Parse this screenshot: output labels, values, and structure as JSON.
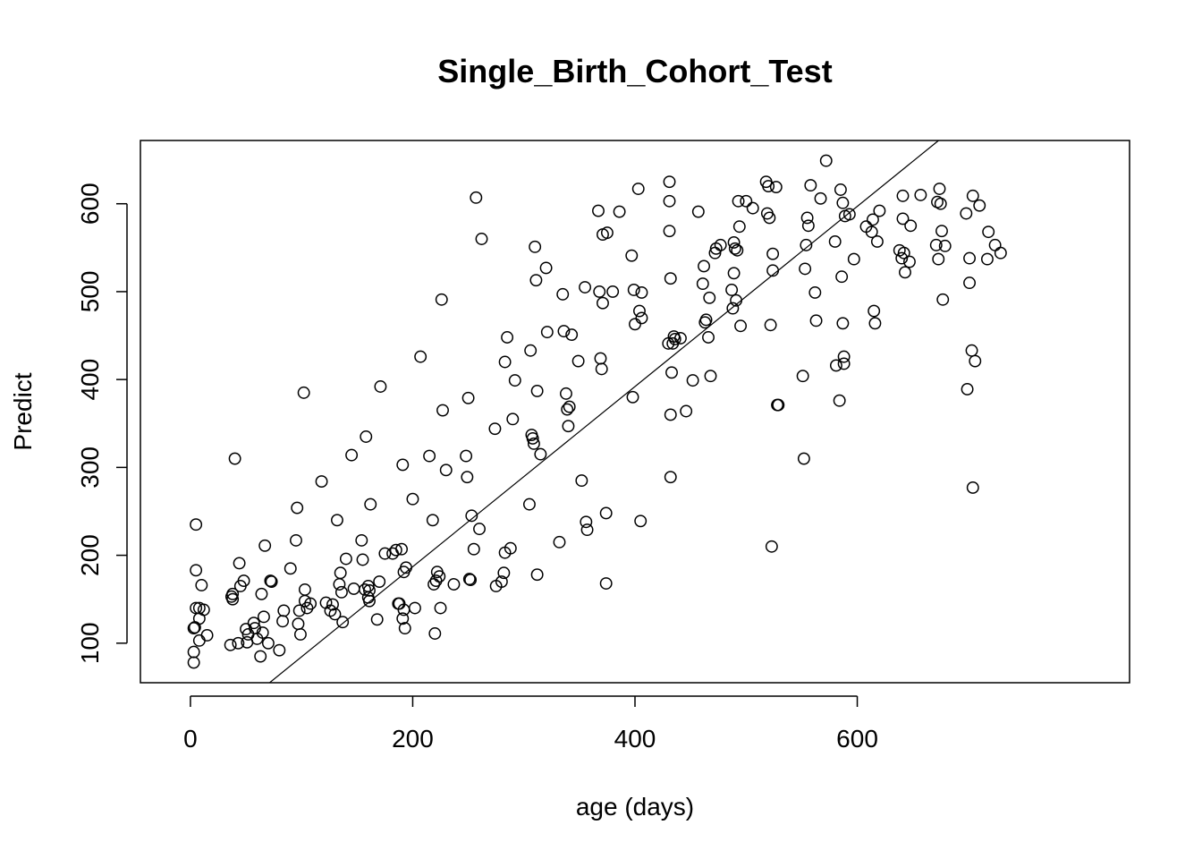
{
  "chart_data": {
    "type": "scatter",
    "title": "Single_Birth_Cohort_Test",
    "xlabel": "age (days)",
    "ylabel": "Predict",
    "xlim": [
      -45,
      845
    ],
    "ylim": [
      55,
      672
    ],
    "x_ticks": [
      0,
      200,
      400,
      600
    ],
    "y_ticks": [
      100,
      200,
      300,
      400,
      500,
      600
    ],
    "x_tick_labels": [
      "0",
      "200",
      "400",
      "600"
    ],
    "y_tick_labels": [
      "100",
      "200",
      "300",
      "400",
      "500",
      "600"
    ],
    "box": true,
    "grid": false,
    "fit_line": {
      "intercept": -18,
      "slope": 1.025
    },
    "points": [
      [
        5,
        235
      ],
      [
        5,
        183
      ],
      [
        8,
        140
      ],
      [
        10,
        166
      ],
      [
        5,
        140
      ],
      [
        3,
        117
      ],
      [
        4,
        118
      ],
      [
        12,
        138
      ],
      [
        8,
        128
      ],
      [
        3,
        90
      ],
      [
        3,
        78
      ],
      [
        8,
        103
      ],
      [
        15,
        109
      ],
      [
        38,
        150
      ],
      [
        37,
        153
      ],
      [
        38,
        156
      ],
      [
        40,
        310
      ],
      [
        43,
        100
      ],
      [
        44,
        191
      ],
      [
        45,
        165
      ],
      [
        48,
        171
      ],
      [
        36,
        98
      ],
      [
        50,
        116
      ],
      [
        51,
        101
      ],
      [
        52,
        110
      ],
      [
        57,
        123
      ],
      [
        58,
        117
      ],
      [
        60,
        105
      ],
      [
        63,
        85
      ],
      [
        64,
        156
      ],
      [
        65,
        112
      ],
      [
        66,
        130
      ],
      [
        67,
        211
      ],
      [
        70,
        100
      ],
      [
        72,
        171
      ],
      [
        73,
        170
      ],
      [
        80,
        92
      ],
      [
        83,
        125
      ],
      [
        84,
        137
      ],
      [
        90,
        185
      ],
      [
        95,
        217
      ],
      [
        96,
        254
      ],
      [
        97,
        122
      ],
      [
        98,
        137
      ],
      [
        99,
        110
      ],
      [
        102,
        385
      ],
      [
        103,
        148
      ],
      [
        103,
        161
      ],
      [
        105,
        140
      ],
      [
        108,
        145
      ],
      [
        118,
        284
      ],
      [
        122,
        146
      ],
      [
        126,
        137
      ],
      [
        128,
        144
      ],
      [
        130,
        133
      ],
      [
        132,
        240
      ],
      [
        134,
        167
      ],
      [
        135,
        180
      ],
      [
        136,
        158
      ],
      [
        137,
        124
      ],
      [
        140,
        196
      ],
      [
        145,
        314
      ],
      [
        147,
        162
      ],
      [
        154,
        217
      ],
      [
        155,
        195
      ],
      [
        157,
        161
      ],
      [
        158,
        335
      ],
      [
        160,
        165
      ],
      [
        160,
        152
      ],
      [
        161,
        148
      ],
      [
        161,
        160
      ],
      [
        162,
        258
      ],
      [
        168,
        127
      ],
      [
        170,
        170
      ],
      [
        171,
        392
      ],
      [
        175,
        202
      ],
      [
        182,
        202
      ],
      [
        185,
        206
      ],
      [
        187,
        145
      ],
      [
        188,
        145
      ],
      [
        190,
        207
      ],
      [
        191,
        128
      ],
      [
        191,
        303
      ],
      [
        192,
        181
      ],
      [
        192,
        138
      ],
      [
        194,
        186
      ],
      [
        193,
        117
      ],
      [
        200,
        264
      ],
      [
        202,
        140
      ],
      [
        207,
        426
      ],
      [
        215,
        313
      ],
      [
        218,
        240
      ],
      [
        219,
        167
      ],
      [
        220,
        111
      ],
      [
        221,
        171
      ],
      [
        222,
        181
      ],
      [
        224,
        176
      ],
      [
        225,
        140
      ],
      [
        226,
        491
      ],
      [
        227,
        365
      ],
      [
        230,
        297
      ],
      [
        237,
        167
      ],
      [
        248,
        313
      ],
      [
        249,
        289
      ],
      [
        250,
        379
      ],
      [
        251,
        173
      ],
      [
        252,
        172
      ],
      [
        253,
        245
      ],
      [
        255,
        207
      ],
      [
        257,
        607
      ],
      [
        260,
        230
      ],
      [
        262,
        560
      ],
      [
        274,
        344
      ],
      [
        275,
        165
      ],
      [
        280,
        170
      ],
      [
        282,
        180
      ],
      [
        283,
        203
      ],
      [
        283,
        420
      ],
      [
        285,
        448
      ],
      [
        288,
        208
      ],
      [
        290,
        355
      ],
      [
        292,
        399
      ],
      [
        305,
        258
      ],
      [
        306,
        433
      ],
      [
        307,
        337
      ],
      [
        308,
        333
      ],
      [
        309,
        327
      ],
      [
        310,
        551
      ],
      [
        311,
        513
      ],
      [
        312,
        387
      ],
      [
        312,
        178
      ],
      [
        315,
        315
      ],
      [
        320,
        527
      ],
      [
        321,
        454
      ],
      [
        332,
        215
      ],
      [
        335,
        497
      ],
      [
        336,
        455
      ],
      [
        338,
        384
      ],
      [
        339,
        366
      ],
      [
        340,
        347
      ],
      [
        341,
        369
      ],
      [
        343,
        451
      ],
      [
        349,
        421
      ],
      [
        352,
        285
      ],
      [
        355,
        505
      ],
      [
        356,
        238
      ],
      [
        357,
        229
      ],
      [
        367,
        592
      ],
      [
        368,
        500
      ],
      [
        369,
        424
      ],
      [
        370,
        412
      ],
      [
        371,
        487
      ],
      [
        371,
        565
      ],
      [
        375,
        567
      ],
      [
        374,
        168
      ],
      [
        374,
        248
      ],
      [
        380,
        500
      ],
      [
        386,
        591
      ],
      [
        397,
        541
      ],
      [
        398,
        380
      ],
      [
        399,
        502
      ],
      [
        400,
        463
      ],
      [
        403,
        617
      ],
      [
        404,
        478
      ],
      [
        405,
        239
      ],
      [
        406,
        499
      ],
      [
        406,
        470
      ],
      [
        430,
        441
      ],
      [
        431,
        625
      ],
      [
        431,
        603
      ],
      [
        431,
        569
      ],
      [
        432,
        515
      ],
      [
        432,
        360
      ],
      [
        432,
        289
      ],
      [
        433,
        408
      ],
      [
        434,
        441
      ],
      [
        435,
        449
      ],
      [
        436,
        446
      ],
      [
        441,
        447
      ],
      [
        446,
        364
      ],
      [
        452,
        399
      ],
      [
        457,
        591
      ],
      [
        461,
        509
      ],
      [
        462,
        529
      ],
      [
        463,
        465
      ],
      [
        464,
        468
      ],
      [
        466,
        448
      ],
      [
        467,
        493
      ],
      [
        468,
        404
      ],
      [
        472,
        544
      ],
      [
        473,
        549
      ],
      [
        477,
        553
      ],
      [
        487,
        502
      ],
      [
        488,
        481
      ],
      [
        489,
        521
      ],
      [
        489,
        556
      ],
      [
        490,
        549
      ],
      [
        491,
        490
      ],
      [
        492,
        547
      ],
      [
        493,
        603
      ],
      [
        494,
        574
      ],
      [
        495,
        461
      ],
      [
        500,
        603
      ],
      [
        506,
        595
      ],
      [
        518,
        625
      ],
      [
        519,
        589
      ],
      [
        520,
        620
      ],
      [
        521,
        584
      ],
      [
        522,
        462
      ],
      [
        523,
        210
      ],
      [
        524,
        524
      ],
      [
        524,
        543
      ],
      [
        527,
        619
      ],
      [
        528,
        371
      ],
      [
        529,
        371
      ],
      [
        551,
        404
      ],
      [
        552,
        310
      ],
      [
        553,
        526
      ],
      [
        554,
        553
      ],
      [
        555,
        584
      ],
      [
        556,
        575
      ],
      [
        558,
        621
      ],
      [
        562,
        499
      ],
      [
        563,
        467
      ],
      [
        567,
        606
      ],
      [
        572,
        649
      ],
      [
        580,
        557
      ],
      [
        581,
        416
      ],
      [
        584,
        376
      ],
      [
        585,
        616
      ],
      [
        586,
        517
      ],
      [
        587,
        464
      ],
      [
        587,
        601
      ],
      [
        588,
        426
      ],
      [
        588,
        418
      ],
      [
        589,
        586
      ],
      [
        593,
        588
      ],
      [
        597,
        537
      ],
      [
        608,
        574
      ],
      [
        613,
        568
      ],
      [
        614,
        582
      ],
      [
        615,
        478
      ],
      [
        616,
        464
      ],
      [
        618,
        557
      ],
      [
        620,
        592
      ],
      [
        638,
        547
      ],
      [
        640,
        538
      ],
      [
        641,
        583
      ],
      [
        641,
        609
      ],
      [
        642,
        544
      ],
      [
        643,
        522
      ],
      [
        647,
        534
      ],
      [
        648,
        575
      ],
      [
        657,
        610
      ],
      [
        671,
        553
      ],
      [
        672,
        602
      ],
      [
        673,
        537
      ],
      [
        674,
        617
      ],
      [
        675,
        600
      ],
      [
        676,
        569
      ],
      [
        677,
        491
      ],
      [
        679,
        552
      ],
      [
        698,
        589
      ],
      [
        699,
        389
      ],
      [
        701,
        538
      ],
      [
        701,
        510
      ],
      [
        703,
        433
      ],
      [
        704,
        609
      ],
      [
        704,
        277
      ],
      [
        706,
        421
      ],
      [
        710,
        598
      ],
      [
        717,
        537
      ],
      [
        718,
        568
      ],
      [
        724,
        553
      ],
      [
        729,
        544
      ]
    ]
  }
}
